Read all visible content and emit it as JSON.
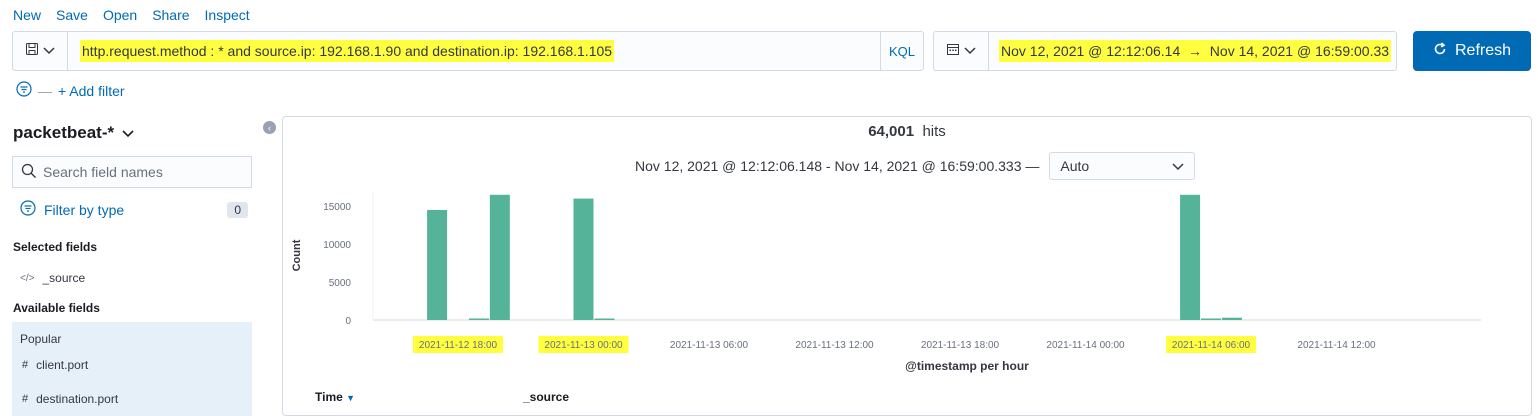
{
  "nav": [
    "New",
    "Save",
    "Open",
    "Share",
    "Inspect"
  ],
  "query": {
    "text": "http.request.method : * and source.ip: 192.168.1.90 and destination.ip: 192.168.1.105",
    "language": "KQL"
  },
  "timerange": {
    "start": "Nov 12, 2021 @ 12:12:06.14",
    "arrow": "→",
    "end": "Nov 14, 2021 @ 16:59:00.33"
  },
  "refresh_label": "Refresh",
  "add_filter": "+ Add filter",
  "sidebar": {
    "index_pattern": "packetbeat-*",
    "search_placeholder": "Search field names",
    "filter_by_type": "Filter by type",
    "filter_count": "0",
    "selected_fields_title": "Selected fields",
    "selected_fields": [
      {
        "name": "_source",
        "icon": "code-icon"
      }
    ],
    "available_fields_title": "Available fields",
    "popular_title": "Popular",
    "popular_fields": [
      {
        "name": "client.port",
        "icon": "number-icon"
      },
      {
        "name": "destination.port",
        "icon": "number-icon"
      }
    ]
  },
  "main": {
    "hits_count": "64,001",
    "hits_label": "hits",
    "range_text": "Nov 12, 2021 @ 12:12:06.148 - Nov 14, 2021 @ 16:59:00.333 —",
    "interval": "Auto"
  },
  "chart_data": {
    "type": "bar",
    "xlabel": "@timestamp per hour",
    "ylabel": "Count",
    "ylim": [
      0,
      17000
    ],
    "yticks": [
      0,
      5000,
      10000,
      15000
    ],
    "xticks": [
      "2021-11-12 18:00",
      "2021-11-13 00:00",
      "2021-11-13 06:00",
      "2021-11-13 12:00",
      "2021-11-13 18:00",
      "2021-11-14 00:00",
      "2021-11-14 06:00",
      "2021-11-14 12:00"
    ],
    "highlighted_xticks": [
      "2021-11-12 18:00",
      "2021-11-13 00:00",
      "2021-11-14 06:00"
    ],
    "bars": [
      {
        "x": "2021-11-12 17:00",
        "value": 14500
      },
      {
        "x": "2021-11-12 19:00",
        "value": 200
      },
      {
        "x": "2021-11-12 20:00",
        "value": 16500
      },
      {
        "x": "2021-11-13 00:00",
        "value": 16000
      },
      {
        "x": "2021-11-13 01:00",
        "value": 200
      },
      {
        "x": "2021-11-14 05:00",
        "value": 16500
      },
      {
        "x": "2021-11-14 06:00",
        "value": 200
      },
      {
        "x": "2021-11-14 07:00",
        "value": 300
      }
    ],
    "color": "#54b399"
  },
  "table": {
    "columns": [
      "Time",
      "_source"
    ]
  }
}
